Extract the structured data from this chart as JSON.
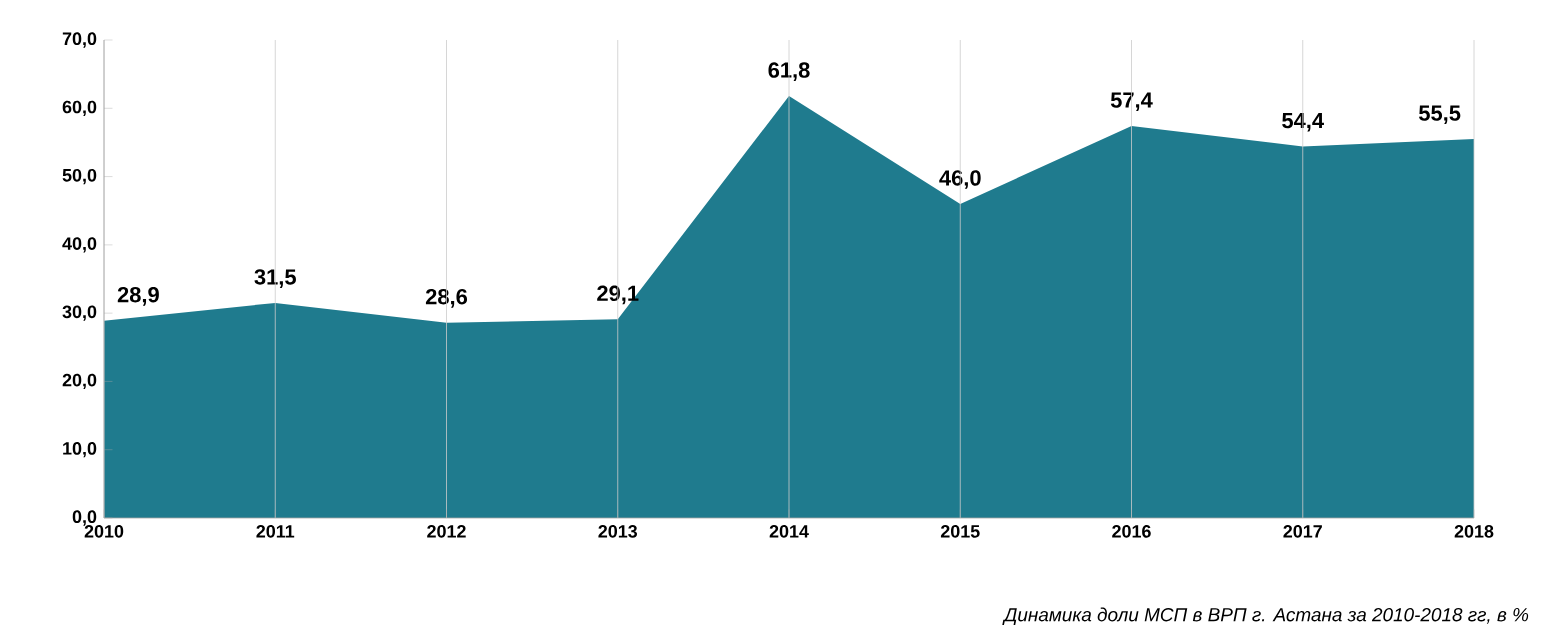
{
  "chart_data": {
    "type": "area",
    "categories": [
      "2010",
      "2011",
      "2012",
      "2013",
      "2014",
      "2015",
      "2016",
      "2017",
      "2018"
    ],
    "values": [
      28.9,
      31.5,
      28.6,
      29.1,
      61.8,
      46.0,
      57.4,
      54.4,
      55.5
    ],
    "value_labels": [
      "28,9",
      "31,5",
      "28,6",
      "29,1",
      "61,8",
      "46,0",
      "57,4",
      "54,4",
      "55,5"
    ],
    "color": "#1f7b8e",
    "ylim": [
      0,
      70
    ],
    "yticks": [
      {
        "value": 0,
        "label": "0,0"
      },
      {
        "value": 10,
        "label": "10,0"
      },
      {
        "value": 20,
        "label": "20,0"
      },
      {
        "value": 30,
        "label": "30,0"
      },
      {
        "value": 40,
        "label": "40,0"
      },
      {
        "value": 50,
        "label": "50,0"
      },
      {
        "value": 60,
        "label": "60,0"
      },
      {
        "value": 70,
        "label": "70,0"
      }
    ],
    "grid": "x",
    "annotations": [
      "Динамика доли МСП в ВРП г. Астана за 2010-2018  гг, в %"
    ]
  }
}
